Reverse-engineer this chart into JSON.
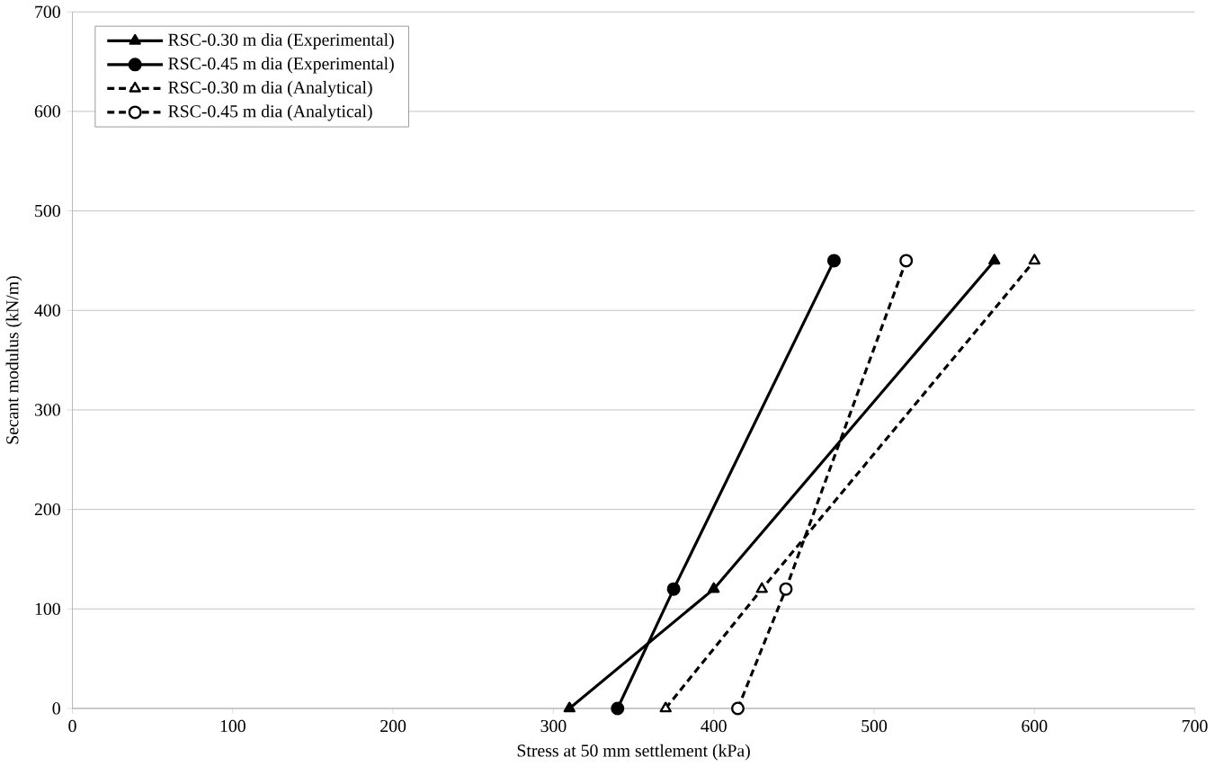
{
  "chart_data": {
    "type": "line",
    "xlabel": "Stress at 50 mm settlement (kPa)",
    "ylabel": "Secant modulus (kN/m)",
    "xlim": [
      0,
      700
    ],
    "ylim": [
      0,
      700
    ],
    "xticks": [
      0,
      100,
      200,
      300,
      400,
      500,
      600,
      700
    ],
    "yticks": [
      0,
      100,
      200,
      300,
      400,
      500,
      600,
      700
    ],
    "grid": "y",
    "legend": "top left",
    "series": [
      {
        "name": "RSC-0.30 m dia (Experimental)",
        "color": "#000000",
        "marker": "triangle",
        "line_style": "solid",
        "x": [
          310,
          400,
          575
        ],
        "values": [
          0,
          120,
          450
        ]
      },
      {
        "name": "RSC-0.45 m dia (Experimental)",
        "color": "#000000",
        "marker": "circle",
        "line_style": "solid",
        "x": [
          340,
          375,
          475
        ],
        "values": [
          0,
          120,
          450
        ]
      },
      {
        "name": "RSC-0.30 m dia (Analytical)",
        "color": "#000000",
        "marker": "triangle",
        "line_style": "dashed",
        "x": [
          370,
          430,
          600
        ],
        "values": [
          0,
          120,
          450
        ]
      },
      {
        "name": "RSC-0.45 m dia (Analytical)",
        "color": "#000000",
        "marker": "circle",
        "line_style": "dashed",
        "x": [
          415,
          445,
          520
        ],
        "values": [
          0,
          120,
          450
        ]
      }
    ]
  }
}
